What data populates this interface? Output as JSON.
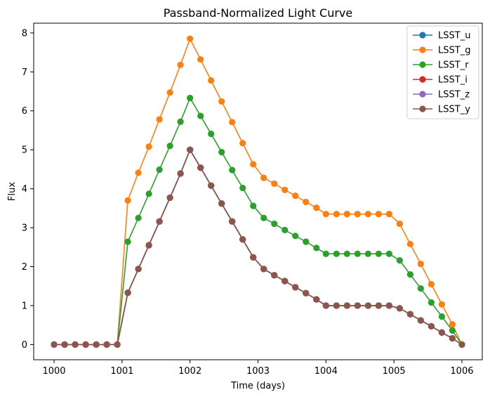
{
  "chart_data": {
    "type": "line",
    "title": "Passband-Normalized Light Curve",
    "xlabel": "Time (days)",
    "ylabel": "Flux",
    "xlim": [
      999.7,
      1006.3
    ],
    "ylim": [
      -0.39,
      8.25
    ],
    "x_ticks": [
      1000,
      1001,
      1002,
      1003,
      1004,
      1005,
      1006
    ],
    "y_ticks": [
      0,
      1,
      2,
      3,
      4,
      5,
      6,
      7,
      8
    ],
    "grid": false,
    "legend_position": "top-right",
    "x": [
      1000.0,
      1000.155,
      1000.31,
      1000.465,
      1000.62,
      1000.775,
      1000.93,
      1001.085,
      1001.24,
      1001.395,
      1001.55,
      1001.705,
      1001.86,
      1002.0,
      1002.155,
      1002.31,
      1002.465,
      1002.62,
      1002.775,
      1002.93,
      1003.085,
      1003.24,
      1003.395,
      1003.55,
      1003.705,
      1003.86,
      1004.0,
      1004.155,
      1004.31,
      1004.465,
      1004.62,
      1004.775,
      1004.93,
      1005.085,
      1005.24,
      1005.395,
      1005.55,
      1005.705,
      1005.86,
      1006.0
    ],
    "series": [
      {
        "name": "LSST_u",
        "color": "#1f77b4",
        "values": [
          0,
          0,
          0,
          0,
          0,
          0,
          0,
          1.33,
          1.94,
          2.55,
          3.16,
          3.77,
          4.39,
          5.0,
          4.54,
          4.08,
          3.62,
          3.16,
          2.7,
          2.24,
          1.94,
          1.78,
          1.63,
          1.47,
          1.32,
          1.16,
          1.0,
          1.0,
          1.0,
          1.0,
          1.0,
          1.0,
          1.0,
          0.93,
          0.78,
          0.62,
          0.47,
          0.31,
          0.16,
          0.0
        ]
      },
      {
        "name": "LSST_g",
        "color": "#ff7f0e",
        "values": [
          0,
          0,
          0,
          0,
          0,
          0,
          0,
          3.7,
          4.41,
          5.08,
          5.78,
          6.47,
          7.18,
          7.85,
          7.32,
          6.78,
          6.24,
          5.71,
          5.17,
          4.63,
          4.28,
          4.13,
          3.97,
          3.82,
          3.66,
          3.51,
          3.35,
          3.35,
          3.35,
          3.35,
          3.35,
          3.35,
          3.35,
          3.1,
          2.58,
          2.07,
          1.55,
          1.03,
          0.52,
          0.0
        ]
      },
      {
        "name": "LSST_r",
        "color": "#2ca02c",
        "values": [
          0,
          0,
          0,
          0,
          0,
          0,
          0,
          2.64,
          3.25,
          3.87,
          4.49,
          5.1,
          5.72,
          6.33,
          5.87,
          5.41,
          4.94,
          4.48,
          4.02,
          3.56,
          3.25,
          3.1,
          2.94,
          2.79,
          2.64,
          2.48,
          2.33,
          2.33,
          2.33,
          2.33,
          2.33,
          2.33,
          2.33,
          2.16,
          1.8,
          1.44,
          1.08,
          0.72,
          0.36,
          0.0
        ]
      },
      {
        "name": "LSST_i",
        "color": "#d62728",
        "values": [
          0,
          0,
          0,
          0,
          0,
          0,
          0,
          1.33,
          1.94,
          2.55,
          3.16,
          3.77,
          4.39,
          5.0,
          4.54,
          4.08,
          3.62,
          3.16,
          2.7,
          2.24,
          1.94,
          1.78,
          1.63,
          1.47,
          1.32,
          1.16,
          1.0,
          1.0,
          1.0,
          1.0,
          1.0,
          1.0,
          1.0,
          0.93,
          0.78,
          0.62,
          0.47,
          0.31,
          0.16,
          0.0
        ]
      },
      {
        "name": "LSST_z",
        "color": "#9467bd",
        "values": [
          0,
          0,
          0,
          0,
          0,
          0,
          0,
          1.33,
          1.94,
          2.55,
          3.16,
          3.77,
          4.39,
          5.0,
          4.54,
          4.08,
          3.62,
          3.16,
          2.7,
          2.24,
          1.94,
          1.78,
          1.63,
          1.47,
          1.32,
          1.16,
          1.0,
          1.0,
          1.0,
          1.0,
          1.0,
          1.0,
          1.0,
          0.93,
          0.78,
          0.62,
          0.47,
          0.31,
          0.16,
          0.0
        ]
      },
      {
        "name": "LSST_y",
        "color": "#8c564b",
        "values": [
          0,
          0,
          0,
          0,
          0,
          0,
          0,
          1.33,
          1.94,
          2.55,
          3.16,
          3.77,
          4.39,
          5.0,
          4.54,
          4.08,
          3.62,
          3.16,
          2.7,
          2.24,
          1.94,
          1.78,
          1.63,
          1.47,
          1.32,
          1.16,
          1.0,
          1.0,
          1.0,
          1.0,
          1.0,
          1.0,
          1.0,
          0.93,
          0.78,
          0.62,
          0.47,
          0.31,
          0.16,
          0.0
        ]
      }
    ]
  }
}
